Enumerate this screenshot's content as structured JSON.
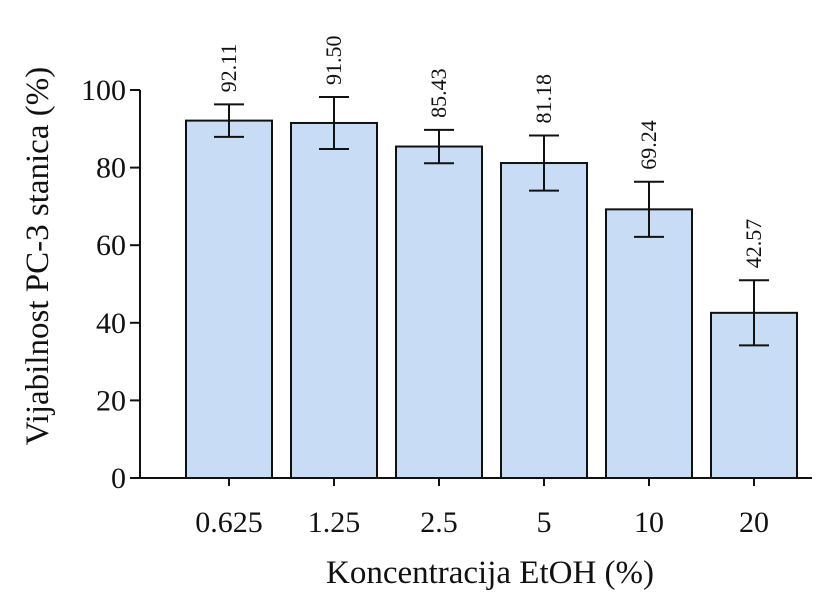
{
  "chart_data": {
    "type": "bar",
    "title": "",
    "xlabel": "Koncentracija EtOH (%)",
    "ylabel": "Vijabilnost PC-3 stanica (%)",
    "categories": [
      "0.625",
      "1.25",
      "2.5",
      "5",
      "10",
      "20"
    ],
    "values": [
      92.11,
      91.5,
      85.43,
      81.18,
      69.24,
      42.57
    ],
    "value_labels": [
      "92.11",
      "91.50",
      "85.43",
      "81.18",
      "69.24",
      "42.57"
    ],
    "error": [
      4.2,
      6.7,
      4.3,
      7.1,
      7.1,
      8.4
    ],
    "ylim": [
      0,
      100
    ],
    "yticks": [
      0,
      20,
      40,
      60,
      80,
      100
    ],
    "ytick_labels": [
      "0",
      "20",
      "40",
      "60",
      "80",
      "100"
    ],
    "grid": false,
    "colors": {
      "bar_fill": "#c9dcf6",
      "bar_stroke": "#111111",
      "axis": "#111111"
    }
  }
}
